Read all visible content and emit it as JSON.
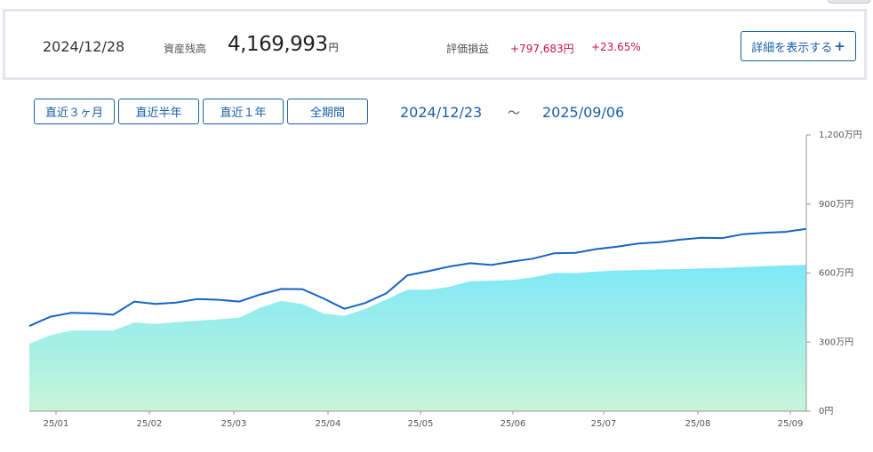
{
  "summary": {
    "date": "2024/12/28",
    "balance_label": "資産残高",
    "balance_value": "4,169,993",
    "balance_unit": "円",
    "eval_label": "評価損益",
    "eval_amount": "+797,683円",
    "eval_percent": "+23.65%",
    "detail_button": "詳細を表示する",
    "detail_icon": "plus-icon"
  },
  "range_buttons": [
    "直近３ヶ月",
    "直近半年",
    "直近１年",
    "全期間"
  ],
  "range": {
    "start": "2024/12/23",
    "separator": "～",
    "end": "2025/09/06"
  },
  "colors": {
    "accent": "#1a5fa8",
    "gain": "#c8134f",
    "line": "#1565c0",
    "area_top": "#7ee8f7",
    "area_bottom": "#c8f5d8"
  },
  "chart_data": {
    "type": "area",
    "x_labels": [
      "25/01",
      "25/02",
      "25/03",
      "25/04",
      "25/05",
      "25/06",
      "25/07",
      "25/08",
      "25/09"
    ],
    "y_ticks": [
      "0円",
      "300万円",
      "600万円",
      "900万円",
      "1,200万円"
    ],
    "ylim": [
      0,
      1200
    ],
    "unit": "万円",
    "grid": false,
    "series": [
      {
        "role": "asset_balance_line",
        "values": [
          370,
          410,
          427,
          425,
          419,
          476,
          466,
          472,
          487,
          484,
          476,
          507,
          531,
          530,
          490,
          445,
          470,
          512,
          590,
          608,
          628,
          643,
          635,
          650,
          663,
          686,
          688,
          704,
          715,
          728,
          734,
          745,
          753,
          752,
          769,
          775,
          779,
          792
        ]
      },
      {
        "role": "principal_area",
        "values": [
          293,
          330,
          350,
          350,
          350,
          385,
          379,
          387,
          393,
          399,
          406,
          450,
          479,
          465,
          425,
          414,
          445,
          485,
          527,
          527,
          540,
          565,
          567,
          570,
          581,
          601,
          600,
          607,
          611,
          613,
          616,
          617,
          620,
          622,
          626,
          630,
          633,
          636
        ]
      }
    ]
  }
}
